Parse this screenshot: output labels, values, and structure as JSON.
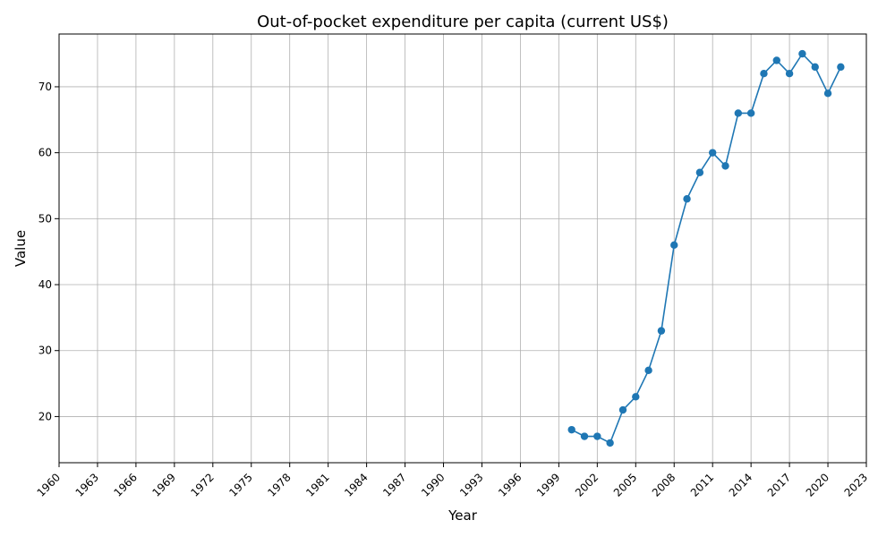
{
  "chart_data": {
    "type": "line",
    "title": "Out-of-pocket expenditure per capita (current US$)",
    "xlabel": "Year",
    "ylabel": "Value",
    "xlim": [
      1960,
      2023
    ],
    "ylim": [
      13,
      78
    ],
    "x_ticks": [
      1960,
      1963,
      1966,
      1969,
      1972,
      1975,
      1978,
      1981,
      1984,
      1987,
      1990,
      1993,
      1996,
      1999,
      2002,
      2005,
      2008,
      2011,
      2014,
      2017,
      2020,
      2023
    ],
    "y_ticks": [
      20,
      30,
      40,
      50,
      60,
      70
    ],
    "grid": true,
    "color": "#1f77b4",
    "marker": "circle",
    "x": [
      2000,
      2001,
      2002,
      2003,
      2004,
      2005,
      2006,
      2007,
      2008,
      2009,
      2010,
      2011,
      2012,
      2013,
      2014,
      2015,
      2016,
      2017,
      2018,
      2019,
      2020,
      2021
    ],
    "y": [
      18,
      17,
      17,
      16,
      21,
      23,
      27,
      33,
      46,
      53,
      57,
      60,
      58,
      66,
      66,
      72,
      74,
      72,
      75,
      73,
      69,
      73
    ]
  }
}
